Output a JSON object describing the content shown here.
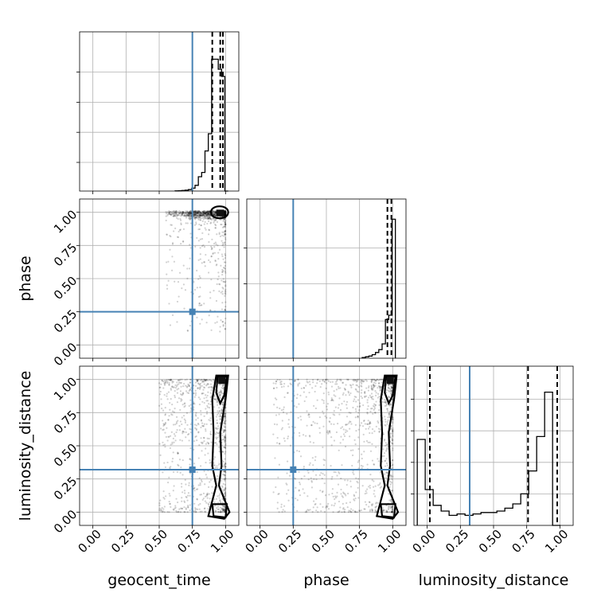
{
  "chart_data": {
    "type": "corner",
    "parameters": [
      "geocent_time",
      "phase",
      "luminosity_distance"
    ],
    "axis_range": [
      -0.1,
      1.1
    ],
    "tick_labels": [
      "0.00",
      "0.25",
      "0.50",
      "0.75",
      "1.00"
    ],
    "tick_values": [
      0,
      0.25,
      0.5,
      0.75,
      1.0
    ],
    "truth_color": "#4682b4",
    "truths": {
      "geocent_time": 0.75,
      "phase": 0.25,
      "luminosity_distance": 0.32
    },
    "histograms": [
      {
        "param": "geocent_time",
        "bin_edges": [
          0.62,
          0.645,
          0.67,
          0.695,
          0.72,
          0.745,
          0.77,
          0.795,
          0.82,
          0.845,
          0.87,
          0.895,
          0.92,
          0.945,
          0.97,
          0.995,
          1.02
        ],
        "counts": [
          0.001,
          0.002,
          0.004,
          0.006,
          0.01,
          0.02,
          0.04,
          0.1,
          0.13,
          0.28,
          0.4,
          0.92,
          0.92,
          0.85,
          0.8,
          0.0
        ],
        "ymax": 1.0,
        "quantile_lines": [
          0.9,
          0.96,
          0.98
        ],
        "grid_y": [
          0.2,
          0.41,
          0.62,
          0.83
        ]
      },
      {
        "param": "phase",
        "bin_edges": [
          0.77,
          0.795,
          0.82,
          0.845,
          0.87,
          0.895,
          0.92,
          0.945,
          0.97,
          0.995,
          1.02
        ],
        "counts": [
          0.005,
          0.01,
          0.015,
          0.025,
          0.04,
          0.06,
          0.1,
          0.27,
          0.3,
          0.97
        ],
        "ymax": 1.0,
        "quantile_lines": [
          0.96,
          0.99
        ],
        "grid_y": [
          0.26,
          0.52,
          0.77
        ]
      },
      {
        "param": "luminosity_distance",
        "bin_edges": [
          -0.075,
          -0.015,
          0.045,
          0.105,
          0.165,
          0.225,
          0.285,
          0.345,
          0.405,
          0.465,
          0.525,
          0.585,
          0.645,
          0.705,
          0.765,
          0.825,
          0.885,
          0.945,
          1.005
        ],
        "counts": [
          0.6,
          0.25,
          0.14,
          0.1,
          0.07,
          0.08,
          0.07,
          0.08,
          0.09,
          0.09,
          0.1,
          0.12,
          0.15,
          0.22,
          0.38,
          0.62,
          0.93,
          0.0
        ],
        "ymax": 1.0,
        "quantile_lines": [
          0.02,
          0.76,
          0.98
        ],
        "grid_y": [
          0.22,
          0.44,
          0.66,
          0.88
        ]
      }
    ],
    "scatter_panels": [
      {
        "x": "geocent_time",
        "y": "phase"
      },
      {
        "x": "geocent_time",
        "y": "luminosity_distance"
      },
      {
        "x": "phase",
        "y": "luminosity_distance"
      }
    ]
  }
}
